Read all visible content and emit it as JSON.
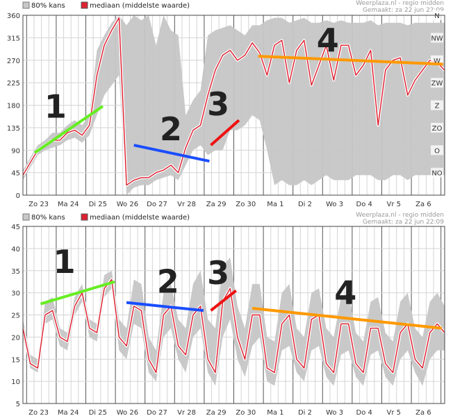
{
  "chart_data": [
    {
      "type": "area",
      "legend": {
        "band": "80% kans",
        "median": "mediaan (middelste waarde)"
      },
      "credit": {
        "line1": "Weerplaza.nl - regio midden",
        "line2": "Gemaakt: za 22 jun 22:09"
      },
      "ylim": [
        0,
        360
      ],
      "yticks": [
        0,
        45,
        90,
        135,
        180,
        225,
        270,
        315,
        360
      ],
      "compass_labels": [
        {
          "label": "N",
          "y": 360
        },
        {
          "label": "NW",
          "y": 315
        },
        {
          "label": "W",
          "y": 270
        },
        {
          "label": "ZW",
          "y": 225
        },
        {
          "label": "Z",
          "y": 180
        },
        {
          "label": "ZO",
          "y": 135
        },
        {
          "label": "O",
          "y": 90
        },
        {
          "label": "NO",
          "y": 45
        }
      ],
      "days": [
        "Zo 23",
        "Ma 24",
        "Di 25",
        "Wo 26",
        "Do 27",
        "Vr 28",
        "Za 29",
        "Zo 30",
        "Ma 1",
        "Di 2",
        "Wo 3",
        "Do 4",
        "Vr 5",
        "Za 6"
      ],
      "x": [
        0,
        0.25,
        0.5,
        0.75,
        1,
        1.25,
        1.5,
        1.75,
        2,
        2.25,
        2.5,
        2.75,
        3,
        3.25,
        3.5,
        3.75,
        4,
        4.25,
        4.5,
        4.75,
        5,
        5.25,
        5.5,
        5.75,
        6,
        6.25,
        6.5,
        6.75,
        7,
        7.25,
        7.5,
        7.75,
        8,
        8.25,
        8.5,
        8.75,
        9,
        9.25,
        9.5,
        9.75,
        10,
        10.25,
        10.5,
        10.75,
        11,
        11.25,
        11.5,
        11.75,
        12,
        12.25,
        12.5,
        12.75,
        13,
        13.25,
        13.5,
        13.75,
        14,
        14.25
      ],
      "median": [
        40,
        65,
        90,
        100,
        110,
        110,
        125,
        130,
        120,
        140,
        240,
        300,
        330,
        355,
        20,
        30,
        35,
        35,
        45,
        50,
        60,
        45,
        95,
        130,
        140,
        200,
        250,
        280,
        290,
        270,
        280,
        305,
        285,
        240,
        300,
        310,
        225,
        290,
        310,
        220,
        260,
        300,
        230,
        300,
        300,
        240,
        260,
        290,
        140,
        250,
        270,
        275,
        200,
        230,
        250,
        270,
        265,
        250
      ],
      "lower": [
        30,
        55,
        80,
        90,
        95,
        100,
        110,
        115,
        105,
        120,
        160,
        200,
        220,
        240,
        0,
        15,
        20,
        20,
        30,
        35,
        40,
        30,
        60,
        90,
        100,
        80,
        90,
        90,
        130,
        130,
        140,
        160,
        150,
        90,
        20,
        30,
        20,
        20,
        30,
        20,
        30,
        40,
        30,
        30,
        30,
        40,
        40,
        40,
        30,
        30,
        40,
        40,
        30,
        40,
        40,
        40,
        40,
        40
      ],
      "upper": [
        50,
        75,
        100,
        110,
        125,
        125,
        140,
        150,
        140,
        160,
        290,
        320,
        345,
        360,
        340,
        360,
        350,
        360,
        300,
        360,
        330,
        320,
        160,
        190,
        210,
        320,
        330,
        335,
        340,
        330,
        320,
        340,
        340,
        350,
        355,
        355,
        345,
        350,
        355,
        345,
        345,
        350,
        345,
        350,
        345,
        345,
        345,
        350,
        340,
        345,
        345,
        345,
        340,
        345,
        345,
        345,
        345,
        345
      ],
      "annotations": [
        {
          "label": "1",
          "color": "#66ee22",
          "x1": 0.4,
          "y1": 85,
          "x2": 2.7,
          "y2": 178,
          "tx": 1.1,
          "ty": 155
        },
        {
          "label": "2",
          "color": "#1a4dff",
          "x1": 3.75,
          "y1": 100,
          "x2": 6.3,
          "y2": 68,
          "tx": 5.0,
          "ty": 110
        },
        {
          "label": "3",
          "color": "#ee1111",
          "x1": 6.35,
          "y1": 100,
          "x2": 7.3,
          "y2": 150,
          "tx": 6.6,
          "ty": 160
        },
        {
          "label": "4",
          "color": "#ff9900",
          "x1": 7.95,
          "y1": 278,
          "x2": 14.2,
          "y2": 262,
          "tx": 10.3,
          "ty": 288
        }
      ]
    },
    {
      "type": "area",
      "legend": {
        "band": "80% kans",
        "median": "mediaan (middelste waarde)"
      },
      "credit": {
        "line1": "Weerplaza.nl - regio midden",
        "line2": "Gemaakt: za 22 jun 22:09"
      },
      "ylim": [
        5,
        45
      ],
      "yticks": [
        5,
        10,
        15,
        20,
        25,
        30,
        35,
        40,
        45
      ],
      "days": [
        "Zo 23",
        "Ma 24",
        "Di 25",
        "Wo 26",
        "Do 27",
        "Vr 28",
        "Za 29",
        "Zo 30",
        "Ma 1",
        "Di 2",
        "Wo 3",
        "Do 4",
        "Vr 5",
        "Za 6"
      ],
      "x": [
        0,
        0.25,
        0.5,
        0.75,
        1,
        1.25,
        1.5,
        1.75,
        2,
        2.25,
        2.5,
        2.75,
        3,
        3.25,
        3.5,
        3.75,
        4,
        4.25,
        4.5,
        4.75,
        5,
        5.25,
        5.5,
        5.75,
        6,
        6.25,
        6.5,
        6.75,
        7,
        7.25,
        7.5,
        7.75,
        8,
        8.25,
        8.5,
        8.75,
        9,
        9.25,
        9.5,
        9.75,
        10,
        10.25,
        10.5,
        10.75,
        11,
        11.25,
        11.5,
        11.75,
        12,
        12.25,
        12.5,
        12.75,
        13,
        13.25,
        13.5,
        13.75,
        14,
        14.25
      ],
      "median": [
        22,
        14,
        13,
        25,
        26,
        20,
        19,
        27,
        30,
        22,
        21,
        31,
        33,
        20,
        18,
        27,
        26,
        15,
        12,
        25,
        27,
        18,
        16,
        25,
        27,
        15,
        12,
        28,
        31,
        20,
        15,
        25,
        25,
        13,
        12,
        23,
        25,
        15,
        13,
        24,
        25,
        14,
        12,
        23,
        23,
        14,
        12,
        22,
        22,
        14,
        12,
        21,
        23,
        15,
        13,
        21,
        23,
        21
      ],
      "lower": [
        20,
        13,
        12,
        23,
        24,
        18,
        17,
        25,
        28,
        20,
        19,
        29,
        31,
        17,
        15,
        23,
        22,
        12,
        10,
        20,
        22,
        15,
        12,
        20,
        22,
        12,
        9,
        20,
        24,
        15,
        11,
        18,
        20,
        10,
        9,
        17,
        18,
        12,
        10,
        17,
        18,
        11,
        9,
        16,
        17,
        11,
        9,
        16,
        17,
        11,
        9,
        15,
        17,
        12,
        9,
        15,
        17,
        17
      ],
      "upper": [
        24,
        16,
        15,
        28,
        29,
        22,
        21,
        29,
        32,
        24,
        23,
        34,
        35,
        24,
        22,
        33,
        32,
        20,
        17,
        30,
        32,
        24,
        22,
        32,
        35,
        24,
        22,
        36,
        38,
        27,
        22,
        32,
        32,
        20,
        19,
        30,
        32,
        22,
        20,
        30,
        31,
        22,
        20,
        29,
        30,
        21,
        19,
        28,
        29,
        21,
        19,
        28,
        30,
        22,
        20,
        28,
        30,
        27
      ],
      "annotations": [
        {
          "label": "1",
          "color": "#66ee22",
          "x1": 0.6,
          "y1": 27.5,
          "x2": 3.1,
          "y2": 32.5,
          "tx": 1.4,
          "ty": 34.5
        },
        {
          "label": "2",
          "color": "#1a4dff",
          "x1": 3.5,
          "y1": 27.8,
          "x2": 6.1,
          "y2": 26.0,
          "tx": 4.9,
          "ty": 30.0
        },
        {
          "label": "3",
          "color": "#ee1111",
          "x1": 6.35,
          "y1": 26.0,
          "x2": 7.2,
          "y2": 30.5,
          "tx": 6.6,
          "ty": 32.0
        },
        {
          "label": "4",
          "color": "#ff9900",
          "x1": 7.75,
          "y1": 26.5,
          "x2": 14.15,
          "y2": 22.0,
          "tx": 10.9,
          "ty": 27.5
        }
      ]
    }
  ]
}
